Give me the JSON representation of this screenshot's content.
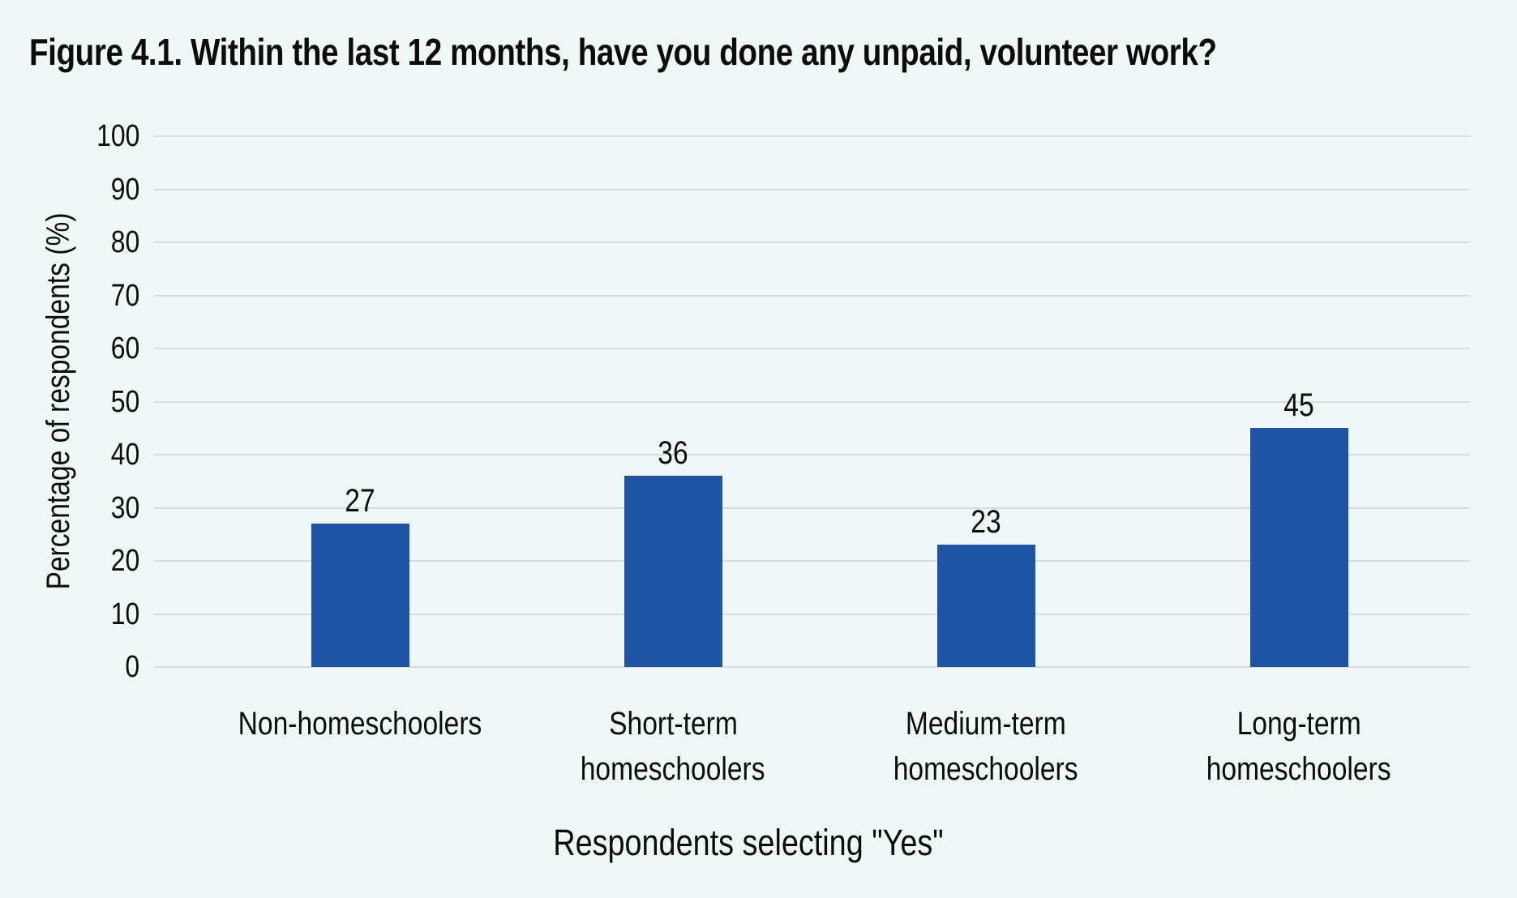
{
  "figure": {
    "title": "Figure 4.1. Within the last 12 months, have you done any unpaid, volunteer work?"
  },
  "colors": {
    "background": "#eff8f6",
    "bar": "#1f54a5",
    "gridline": "#d6dcdb",
    "text": "#0c0c0c"
  },
  "chart_data": {
    "type": "bar",
    "title": "Figure 4.1. Within the last 12 months, have you done any unpaid, volunteer work?",
    "categories": [
      "Non-homeschoolers",
      "Short-term homeschoolers",
      "Medium-term homeschoolers",
      "Long-term homeschoolers"
    ],
    "category_lines": [
      [
        "Non-homeschoolers"
      ],
      [
        "Short-term",
        "homeschoolers"
      ],
      [
        "Medium-term",
        "homeschoolers"
      ],
      [
        "Long-term",
        "homeschoolers"
      ]
    ],
    "values": [
      27,
      36,
      23,
      45
    ],
    "value_labels": [
      "27",
      "36",
      "23",
      "45"
    ],
    "xlabel": "Respondents selecting \"Yes\"",
    "ylabel": "Percentage of respondents (%)",
    "ylim": [
      0,
      100
    ],
    "yticks": [
      0,
      10,
      20,
      30,
      40,
      50,
      60,
      70,
      80,
      90,
      100
    ],
    "grid": "horizontal-only",
    "legend_position": "none",
    "bar_color": "#1f54a5"
  }
}
